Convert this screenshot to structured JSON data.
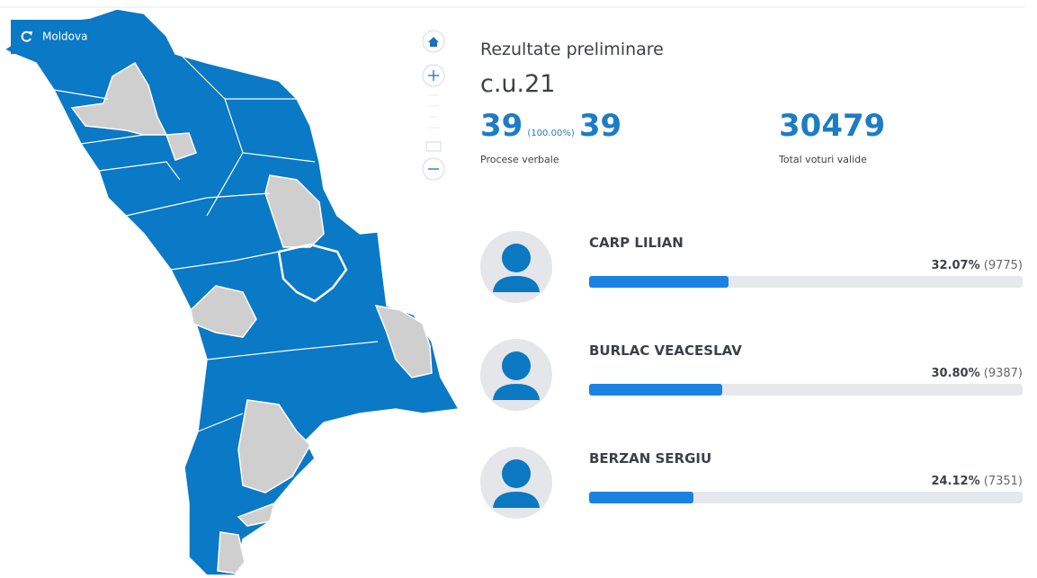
{
  "map_button": "Moldova",
  "header": {
    "title": "Rezultate preliminare",
    "subtitle": "c.u.21"
  },
  "stats": {
    "processed": "39",
    "processed_percent": "(100.00%)",
    "processed_total": "39",
    "processed_label": "Procese verbale",
    "valid_votes": "30479",
    "valid_votes_label": "Total voturi valide"
  },
  "candidates": [
    {
      "name": "CARP LILIAN",
      "share": 32.07,
      "share_label": "32.07%",
      "votes": "(9775)"
    },
    {
      "name": "BURLAC VEACESLAV",
      "share": 30.8,
      "share_label": "30.80%",
      "votes": "(9387)"
    },
    {
      "name": "BERZAN SERGIU",
      "share": 24.12,
      "share_label": "24.12%",
      "votes": "(7351)"
    }
  ]
}
